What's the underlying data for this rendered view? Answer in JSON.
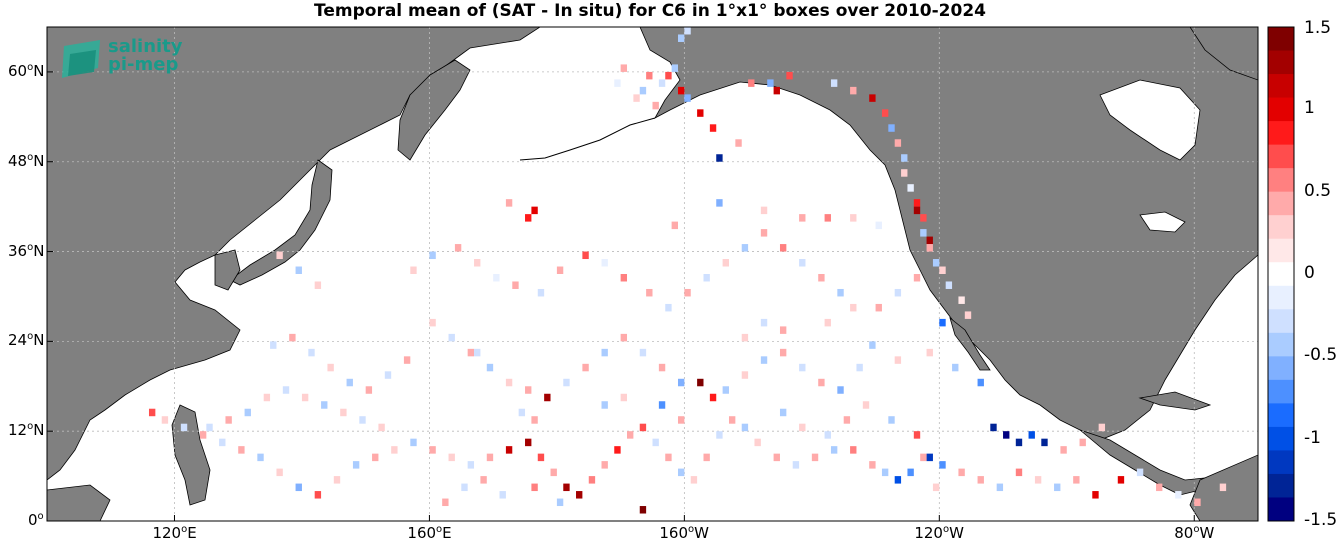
{
  "title": "Temporal mean of (SAT - In situ) for C6 in 1°x1° boxes over 2010-2024",
  "logo": {
    "line1": "salinity",
    "line2": "pi-mep"
  },
  "map": {
    "lon_range": [
      100,
      290
    ],
    "lat_range": [
      0,
      66
    ],
    "land_color": "#808080",
    "grid": true
  },
  "lon_ticks": [
    {
      "value": 120,
      "label": "120",
      "suffix": "E"
    },
    {
      "value": 160,
      "label": "160",
      "suffix": "E"
    },
    {
      "value": 200,
      "label": "160",
      "suffix": "W"
    },
    {
      "value": 240,
      "label": "120",
      "suffix": "W"
    },
    {
      "value": 280,
      "label": "80",
      "suffix": "W"
    }
  ],
  "lat_ticks": [
    {
      "value": 0,
      "label": "0",
      "suffix": ""
    },
    {
      "value": 12,
      "label": "12",
      "suffix": "N"
    },
    {
      "value": 24,
      "label": "24",
      "suffix": "N"
    },
    {
      "value": 36,
      "label": "36",
      "suffix": "N"
    },
    {
      "value": 48,
      "label": "48",
      "suffix": "N"
    },
    {
      "value": 60,
      "label": "60",
      "suffix": "N"
    }
  ],
  "colorbar": {
    "range": [
      -1.5,
      1.5
    ],
    "ticks": [
      "1.5",
      "1",
      "0.5",
      "0",
      "-0.5",
      "-1",
      "-1.5"
    ],
    "tick_values": [
      1.5,
      1,
      0.5,
      0,
      -0.5,
      -1,
      -1.5
    ],
    "colors": [
      "#7f0000",
      "#a30000",
      "#c80000",
      "#e30000",
      "#ff1a1a",
      "#ff4d4d",
      "#ff8080",
      "#ffaaaa",
      "#ffd0d0",
      "#ffe8e8",
      "#ffffff",
      "#e8f0ff",
      "#cfe0ff",
      "#aaccff",
      "#80b0ff",
      "#4d90ff",
      "#1a6cff",
      "#0050e6",
      "#0038c0",
      "#002496",
      "#000080"
    ]
  },
  "chart_data": {
    "type": "heatmap",
    "title": "Temporal mean of (SAT - In situ) for C6 in 1°x1° boxes over 2010-2024",
    "xlabel": "",
    "ylabel": "",
    "x_unit": "longitude (°E, 0-360)",
    "y_unit": "latitude (°N)",
    "points": [
      [
        208,
        50,
        0.5
      ],
      [
        205,
        48,
        -1.4
      ],
      [
        210,
        58,
        0.6
      ],
      [
        213,
        58,
        -0.6
      ],
      [
        214,
        57,
        1.2
      ],
      [
        216,
        59,
        0.7
      ],
      [
        198,
        60,
        -0.5
      ],
      [
        197,
        59,
        0.8
      ],
      [
        196,
        58,
        -0.3
      ],
      [
        199,
        57,
        1.0
      ],
      [
        200,
        56,
        -0.6
      ],
      [
        195,
        55,
        0.4
      ],
      [
        192,
        56,
        0.3
      ],
      [
        193,
        57,
        -0.4
      ],
      [
        194,
        59,
        0.6
      ],
      [
        189,
        58,
        -0.2
      ],
      [
        190,
        60,
        0.4
      ],
      [
        199,
        64,
        -0.5
      ],
      [
        200,
        65,
        -0.3
      ],
      [
        197,
        66,
        -1.3
      ],
      [
        202,
        54,
        1.1
      ],
      [
        204,
        52,
        0.9
      ],
      [
        223,
        58,
        -0.3
      ],
      [
        226,
        57,
        0.4
      ],
      [
        229,
        56,
        1.2
      ],
      [
        231,
        54,
        0.7
      ],
      [
        232,
        52,
        -0.6
      ],
      [
        233,
        50,
        0.5
      ],
      [
        234,
        48,
        -0.4
      ],
      [
        234,
        46,
        0.3
      ],
      [
        235,
        44,
        -0.2
      ],
      [
        236,
        42,
        0.9
      ],
      [
        236,
        41,
        1.4
      ],
      [
        237,
        40,
        0.8
      ],
      [
        237,
        38,
        -0.5
      ],
      [
        238,
        37,
        1.3
      ],
      [
        238,
        36,
        0.5
      ],
      [
        239,
        34,
        -0.4
      ],
      [
        240,
        33,
        0.3
      ],
      [
        241,
        31,
        -0.3
      ],
      [
        243,
        29,
        0.2
      ],
      [
        244,
        27,
        0.3
      ],
      [
        236,
        32,
        0.4
      ],
      [
        233,
        30,
        -0.3
      ],
      [
        230,
        28,
        0.5
      ],
      [
        226,
        28,
        0.3
      ],
      [
        224,
        30,
        -0.4
      ],
      [
        221,
        32,
        0.5
      ],
      [
        218,
        34,
        -0.3
      ],
      [
        215,
        36,
        0.6
      ],
      [
        212,
        38,
        0.4
      ],
      [
        209,
        36,
        -0.4
      ],
      [
        206,
        34,
        0.3
      ],
      [
        203,
        32,
        -0.3
      ],
      [
        200,
        30,
        0.4
      ],
      [
        197,
        28,
        -0.3
      ],
      [
        194,
        30,
        0.5
      ],
      [
        190,
        32,
        0.6
      ],
      [
        187,
        34,
        -0.2
      ],
      [
        184,
        35,
        0.7
      ],
      [
        180,
        33,
        0.4
      ],
      [
        177,
        30,
        -0.3
      ],
      [
        173,
        31,
        0.5
      ],
      [
        170,
        32,
        -0.2
      ],
      [
        167,
        34,
        0.3
      ],
      [
        164,
        36,
        0.4
      ],
      [
        160,
        35,
        -0.4
      ],
      [
        157,
        33,
        0.3
      ],
      [
        172,
        42,
        0.5
      ],
      [
        176,
        41,
        1.0
      ],
      [
        175,
        40,
        0.9
      ],
      [
        198,
        39,
        0.4
      ],
      [
        205,
        42,
        -0.6
      ],
      [
        212,
        41,
        0.3
      ],
      [
        218,
        40,
        0.5
      ],
      [
        222,
        40,
        0.6
      ],
      [
        226,
        40,
        0.3
      ],
      [
        230,
        39,
        -0.2
      ],
      [
        160,
        26,
        0.3
      ],
      [
        163,
        24,
        -0.3
      ],
      [
        166,
        22,
        0.4
      ],
      [
        169,
        20,
        -0.4
      ],
      [
        172,
        18,
        0.3
      ],
      [
        175,
        17,
        0.5
      ],
      [
        178,
        16,
        1.4
      ],
      [
        181,
        18,
        -0.3
      ],
      [
        184,
        20,
        0.4
      ],
      [
        187,
        22,
        -0.4
      ],
      [
        190,
        24,
        0.5
      ],
      [
        193,
        22,
        -0.3
      ],
      [
        196,
        20,
        0.4
      ],
      [
        199,
        18,
        -0.6
      ],
      [
        202,
        18,
        1.5
      ],
      [
        204,
        16,
        0.9
      ],
      [
        206,
        17,
        -0.4
      ],
      [
        209,
        19,
        0.3
      ],
      [
        212,
        21,
        -0.5
      ],
      [
        215,
        22,
        0.4
      ],
      [
        218,
        20,
        -0.3
      ],
      [
        221,
        18,
        0.5
      ],
      [
        224,
        17,
        -0.6
      ],
      [
        228,
        15,
        0.3
      ],
      [
        232,
        13,
        -0.5
      ],
      [
        236,
        11,
        0.7
      ],
      [
        238,
        8,
        -1.2
      ],
      [
        240,
        7,
        -0.7
      ],
      [
        243,
        6,
        0.5
      ],
      [
        246,
        5,
        0.4
      ],
      [
        249,
        4,
        -0.5
      ],
      [
        252,
        6,
        0.6
      ],
      [
        255,
        5,
        0.3
      ],
      [
        258,
        4,
        -0.4
      ],
      [
        261,
        5,
        0.5
      ],
      [
        264,
        3,
        1.1
      ],
      [
        268,
        5,
        1.0
      ],
      [
        271,
        6,
        -0.3
      ],
      [
        274,
        4,
        0.5
      ],
      [
        277,
        3,
        -0.2
      ],
      [
        280,
        2,
        0.4
      ],
      [
        284,
        4,
        0.3
      ],
      [
        248,
        12,
        -1.4
      ],
      [
        250,
        11,
        -1.5
      ],
      [
        252,
        10,
        -1.3
      ],
      [
        254,
        11,
        -1.0
      ],
      [
        256,
        10,
        -1.3
      ],
      [
        259,
        9,
        0.4
      ],
      [
        262,
        10,
        0.5
      ],
      [
        265,
        12,
        0.3
      ],
      [
        246,
        18,
        -0.8
      ],
      [
        242,
        20,
        -0.4
      ],
      [
        238,
        22,
        0.3
      ],
      [
        240,
        26,
        -0.9
      ],
      [
        116,
        14,
        0.7
      ],
      [
        118,
        13,
        0.3
      ],
      [
        121,
        12,
        -0.3
      ],
      [
        124,
        11,
        0.4
      ],
      [
        127,
        10,
        -0.3
      ],
      [
        130,
        9,
        0.5
      ],
      [
        133,
        8,
        -0.4
      ],
      [
        136,
        6,
        0.3
      ],
      [
        139,
        4,
        -0.6
      ],
      [
        142,
        3,
        0.7
      ],
      [
        145,
        5,
        0.3
      ],
      [
        148,
        7,
        -0.5
      ],
      [
        151,
        8,
        0.4
      ],
      [
        154,
        9,
        0.3
      ],
      [
        157,
        10,
        -0.4
      ],
      [
        160,
        9,
        0.5
      ],
      [
        163,
        8,
        0.3
      ],
      [
        166,
        7,
        -0.3
      ],
      [
        169,
        8,
        0.5
      ],
      [
        172,
        9,
        1.2
      ],
      [
        175,
        10,
        1.3
      ],
      [
        177,
        8,
        0.8
      ],
      [
        179,
        6,
        0.5
      ],
      [
        181,
        4,
        1.4
      ],
      [
        183,
        3,
        1.3
      ],
      [
        185,
        5,
        0.6
      ],
      [
        187,
        7,
        0.4
      ],
      [
        189,
        9,
        0.9
      ],
      [
        191,
        11,
        0.5
      ],
      [
        193,
        12,
        0.7
      ],
      [
        195,
        10,
        -0.3
      ],
      [
        197,
        8,
        0.4
      ],
      [
        199,
        6,
        -0.4
      ],
      [
        201,
        5,
        0.3
      ],
      [
        203,
        8,
        0.5
      ],
      [
        205,
        11,
        -0.3
      ],
      [
        207,
        13,
        0.4
      ],
      [
        209,
        12,
        -0.4
      ],
      [
        211,
        10,
        0.3
      ],
      [
        214,
        8,
        0.5
      ],
      [
        217,
        7,
        -0.3
      ],
      [
        220,
        8,
        0.4
      ],
      [
        223,
        9,
        -0.5
      ],
      [
        226,
        9,
        0.6
      ],
      [
        229,
        7,
        0.4
      ],
      [
        231,
        6,
        -0.5
      ],
      [
        233,
        5,
        -1.0
      ],
      [
        235,
        6,
        -0.8
      ],
      [
        237,
        8,
        0.5
      ],
      [
        239,
        4,
        0.3
      ],
      [
        193,
        1,
        1.5
      ],
      [
        180,
        2,
        -0.4
      ],
      [
        176,
        4,
        0.6
      ],
      [
        171,
        3,
        -0.3
      ],
      [
        168,
        5,
        0.4
      ],
      [
        165,
        4,
        -0.3
      ],
      [
        162,
        2,
        0.5
      ],
      [
        152,
        12,
        0.3
      ],
      [
        149,
        13,
        -0.3
      ],
      [
        146,
        14,
        0.3
      ],
      [
        143,
        15,
        -0.4
      ],
      [
        140,
        16,
        0.3
      ],
      [
        137,
        17,
        -0.3
      ],
      [
        134,
        16,
        0.3
      ],
      [
        131,
        14,
        -0.4
      ],
      [
        128,
        13,
        0.5
      ],
      [
        125,
        12,
        -0.3
      ],
      [
        174,
        14,
        -0.3
      ],
      [
        176,
        13,
        0.4
      ],
      [
        187,
        15,
        -0.5
      ],
      [
        190,
        16,
        0.3
      ],
      [
        196,
        15,
        -0.7
      ],
      [
        199,
        13,
        0.4
      ],
      [
        215,
        14,
        -0.4
      ],
      [
        218,
        12,
        0.3
      ],
      [
        222,
        11,
        -0.3
      ],
      [
        225,
        13,
        0.4
      ],
      [
        167,
        22,
        -0.3
      ],
      [
        156,
        21,
        0.4
      ],
      [
        153,
        19,
        -0.3
      ],
      [
        150,
        17,
        0.4
      ],
      [
        147,
        18,
        -0.4
      ],
      [
        144,
        20,
        0.3
      ],
      [
        141,
        22,
        -0.3
      ],
      [
        138,
        24,
        0.4
      ],
      [
        135,
        23,
        -0.3
      ],
      [
        209,
        24,
        0.3
      ],
      [
        212,
        26,
        -0.3
      ],
      [
        215,
        25,
        0.4
      ],
      [
        222,
        26,
        0.3
      ],
      [
        229,
        23,
        -0.4
      ],
      [
        233,
        21,
        0.3
      ],
      [
        227,
        20,
        -0.3
      ],
      [
        136,
        35,
        0.3
      ],
      [
        139,
        33,
        -0.4
      ],
      [
        142,
        31,
        0.3
      ]
    ]
  }
}
